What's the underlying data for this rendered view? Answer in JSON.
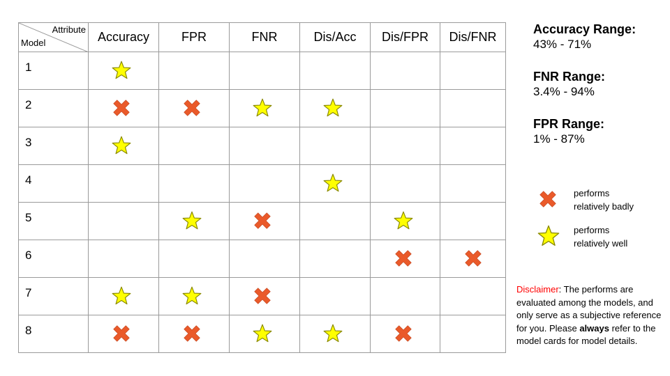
{
  "table": {
    "corner_top": "Attribute",
    "corner_bottom": "Model",
    "columns": [
      "Accuracy",
      "FPR",
      "FNR",
      "Dis/Acc",
      "Dis/FPR",
      "Dis/FNR"
    ],
    "rows": [
      {
        "model": "1",
        "marks": [
          "star",
          "",
          "",
          "",
          "",
          ""
        ]
      },
      {
        "model": "2",
        "marks": [
          "cross",
          "cross",
          "star",
          "star",
          "",
          ""
        ]
      },
      {
        "model": "3",
        "marks": [
          "star",
          "",
          "",
          "",
          "",
          ""
        ]
      },
      {
        "model": "4",
        "marks": [
          "",
          "",
          "",
          "star",
          "",
          ""
        ]
      },
      {
        "model": "5",
        "marks": [
          "",
          "star",
          "cross",
          "",
          "star",
          ""
        ]
      },
      {
        "model": "6",
        "marks": [
          "",
          "",
          "",
          "",
          "cross",
          "cross"
        ]
      },
      {
        "model": "7",
        "marks": [
          "star",
          "star",
          "cross",
          "",
          "",
          ""
        ]
      },
      {
        "model": "8",
        "marks": [
          "cross",
          "cross",
          "star",
          "star",
          "cross",
          ""
        ]
      }
    ]
  },
  "ranges": [
    {
      "title": "Accuracy Range:",
      "value": "43% - 71%"
    },
    {
      "title": "FNR Range:",
      "value": "3.4% - 94%"
    },
    {
      "title": "FPR Range:",
      "value": "1% - 87%"
    }
  ],
  "legend": {
    "cross_icon": "cross-icon",
    "cross_line1": "performs",
    "cross_line2": "relatively badly",
    "star_icon": "star-icon",
    "star_line1": "performs",
    "star_line2": "relatively well"
  },
  "disclaimer": {
    "label": "Disclaimer",
    "text1": ": The performs are evaluated among the models, and only serve as a subjective reference for you. Please ",
    "bold": "always",
    "text2": " refer to the model cards for model details."
  },
  "colors": {
    "star_fill": "#ffff00",
    "star_stroke": "#8a8a00",
    "cross_fill": "#ea5a2a",
    "grid_line": "#9a9a9a",
    "disclaimer_label": "#ff0000"
  }
}
